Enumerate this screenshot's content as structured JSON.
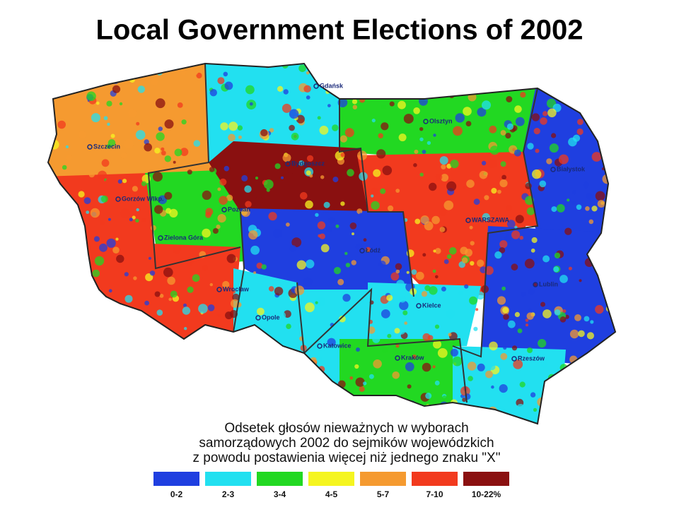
{
  "title": "Local Government Elections of 2002",
  "map": {
    "cities": [
      "Gdańsk",
      "Olsztyn",
      "Szczecin",
      "Bydgoszcz",
      "Białystok",
      "Gorzów Wlkp.",
      "Poznań",
      "WARSZAWA",
      "Zielona Góra",
      "Łódź",
      "Lublin",
      "Wrocław",
      "Kielce",
      "Opole",
      "Katowice",
      "Kraków",
      "Rzeszów"
    ]
  },
  "legend": {
    "caption": [
      "Odsetek głosów nieważnych w wyborach",
      "samorządowych 2002 do sejmików wojewódzkich",
      "z powodu postawienia więcej niż jednego znaku \"X\""
    ],
    "items": [
      {
        "label": "0-2",
        "color": "#1f3fe0"
      },
      {
        "label": "2-3",
        "color": "#22e0f0"
      },
      {
        "label": "3-4",
        "color": "#22d822"
      },
      {
        "label": "4-5",
        "color": "#f5f520"
      },
      {
        "label": "5-7",
        "color": "#f59a30"
      },
      {
        "label": "7-10",
        "color": "#f23a1e"
      },
      {
        "label": "10-22%",
        "color": "#8a1010"
      }
    ]
  }
}
